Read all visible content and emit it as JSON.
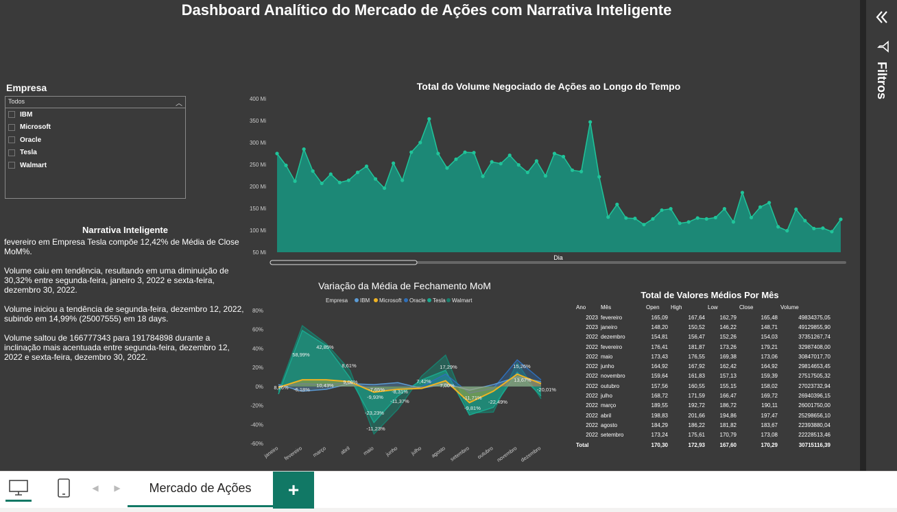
{
  "title": "Dashboard Analítico do Mercado de Ações com Narrativa Inteligente",
  "slicer": {
    "title": "Empresa",
    "dropdown_value": "Todos",
    "items": [
      "IBM",
      "Microsoft",
      "Oracle",
      "Tesla",
      "Walmart"
    ]
  },
  "narrative": {
    "title": "Narrativa Inteligente",
    "p1": "fevereiro em Empresa Tesla compõe 12,42% de Média de Close MoM%.",
    "p2": "Volume caiu em tendência, resultando em uma diminuição de 30,32% entre segunda-feira, janeiro 3, 2022 e sexta-feira, dezembro 30, 2022.",
    "p3": "Volume iniciou a tendência de segunda-feira, dezembro 12, 2022, subindo em 14,99% (25007555) em 18 days.",
    "p4": "Volume saltou de 166777343 para 191784898 durante a inclinação mais acentuada entre segunda-feira, dezembro 12, 2022 e sexta-feira, dezembro 30, 2022."
  },
  "filters": {
    "label": "Filtros"
  },
  "bottom": {
    "tab_label": "Mercado de Ações",
    "add_label": "+"
  },
  "colors": {
    "accent": "#117865",
    "area": "#1a8c79",
    "area_line": "#20c49a",
    "ibm": "#5b9bd5",
    "microsoft": "#f0b323",
    "oracle": "#2f6fb8",
    "tesla": "#1aa88f",
    "walmart": "#1a7d6c"
  },
  "chart_data": [
    {
      "type": "area",
      "title": "Total do Volume Negociado de Ações ao Longo do Tempo",
      "xlabel": "Dia",
      "ylabel": "",
      "ylim": [
        50,
        400
      ],
      "ytick_labels": [
        "400 Mi",
        "350 Mi",
        "300 Mi",
        "250 Mi",
        "200 Mi",
        "150 Mi",
        "100 Mi",
        "50 Mi"
      ],
      "yticks": [
        400,
        350,
        300,
        250,
        200,
        150,
        100,
        50
      ],
      "values": [
        275,
        248,
        212,
        285,
        235,
        207,
        228,
        209,
        214,
        232,
        246,
        217,
        196,
        253,
        214,
        278,
        300,
        354,
        275,
        242,
        262,
        278,
        277,
        223,
        256,
        252,
        271,
        249,
        232,
        258,
        224,
        275,
        268,
        237,
        234,
        347,
        222,
        130,
        159,
        128,
        127,
        113,
        126,
        146,
        149,
        116,
        119,
        128,
        126,
        129,
        149,
        119,
        186,
        129,
        153,
        163,
        108,
        99,
        148,
        122,
        104,
        105,
        97,
        125
      ]
    },
    {
      "type": "line",
      "title": "Variação da Média de Fechamento MoM",
      "legend_title": "Empresa",
      "legend": "top",
      "categories": [
        "janeiro",
        "fevereiro",
        "março",
        "abril",
        "maio",
        "junho",
        "julho",
        "agosto",
        "setembro",
        "outubro",
        "novembro",
        "dezembro"
      ],
      "ylim": [
        -60,
        80
      ],
      "ytick_labels": [
        "80%",
        "60%",
        "40%",
        "20%",
        "0%",
        "-20%",
        "-40%",
        "-60%"
      ],
      "yticks": [
        80,
        60,
        40,
        20,
        0,
        -20,
        -40,
        -60
      ],
      "series": [
        {
          "name": "IBM",
          "values": [
            2,
            -5,
            -3,
            3,
            2,
            4,
            -2,
            3,
            -4,
            2,
            10,
            5
          ]
        },
        {
          "name": "Microsoft",
          "values": [
            -1,
            7,
            7,
            5,
            -6,
            -3,
            -2,
            6,
            -17,
            -5,
            13,
            3
          ]
        },
        {
          "name": "Oracle",
          "values": [
            0,
            3,
            2,
            4,
            -3,
            -3,
            0,
            13,
            -7,
            -2,
            28,
            7
          ]
        },
        {
          "name": "Tesla",
          "values": [
            -8,
            59,
            43,
            9,
            -38,
            -10,
            7,
            17,
            -30,
            -22,
            15,
            -10
          ]
        },
        {
          "name": "Walmart",
          "values": [
            -5,
            64,
            45,
            17,
            -50,
            -24,
            11,
            33,
            -28,
            -27,
            25,
            -13
          ]
        }
      ],
      "data_labels": [
        "8,26%",
        "58,99%",
        "-6,18%",
        "42,85%",
        "10,43%",
        "8,61%",
        "9,08%",
        "-7,65%",
        "-9,93%",
        "-23,23%",
        "-11,23%",
        "-8,31%",
        "-11,37%",
        "7,42%",
        "17,29%",
        "7,00%",
        "-11,71%",
        "-9,81%",
        "-22,49%",
        "15,26%",
        "13,67%",
        "-20,01%"
      ]
    },
    {
      "type": "table",
      "title": "Total de Valores Médios Por Mês",
      "columns": [
        "Ano",
        "Mês",
        "Open",
        "High",
        "Low",
        "Close",
        "Volume"
      ],
      "rows": [
        [
          "2023",
          "fevereiro",
          "165,09",
          "167,64",
          "162,79",
          "165,48",
          "49834375,05"
        ],
        [
          "2023",
          "janeiro",
          "148,20",
          "150,52",
          "146,22",
          "148,71",
          "49129855,90"
        ],
        [
          "2022",
          "dezembro",
          "154,81",
          "156,47",
          "152,26",
          "154,03",
          "37351267,74"
        ],
        [
          "2022",
          "fevereiro",
          "176,41",
          "181,87",
          "173,26",
          "179,21",
          "32987408,00"
        ],
        [
          "2022",
          "maio",
          "173,43",
          "176,55",
          "169,38",
          "173,06",
          "30847017,70"
        ],
        [
          "2022",
          "junho",
          "164,92",
          "167,92",
          "162,42",
          "164,92",
          "29814653,45"
        ],
        [
          "2022",
          "novembro",
          "159,64",
          "161,83",
          "157,13",
          "159,39",
          "27517505,32"
        ],
        [
          "2022",
          "outubro",
          "157,56",
          "160,55",
          "155,15",
          "158,02",
          "27023732,94"
        ],
        [
          "2022",
          "julho",
          "168,72",
          "171,59",
          "166,47",
          "169,72",
          "26940396,15"
        ],
        [
          "2022",
          "março",
          "189,55",
          "192,72",
          "186,72",
          "190,11",
          "26001750,00"
        ],
        [
          "2022",
          "abril",
          "198,83",
          "201,66",
          "194,86",
          "197,47",
          "25298656,10"
        ],
        [
          "2022",
          "agosto",
          "184,29",
          "186,22",
          "181,82",
          "183,67",
          "22393880,04"
        ],
        [
          "2022",
          "setembro",
          "173,24",
          "175,61",
          "170,79",
          "173,08",
          "22228513,46"
        ]
      ],
      "total": [
        "Total",
        "",
        "170,30",
        "172,93",
        "167,60",
        "170,29",
        "30715116,39"
      ]
    }
  ]
}
